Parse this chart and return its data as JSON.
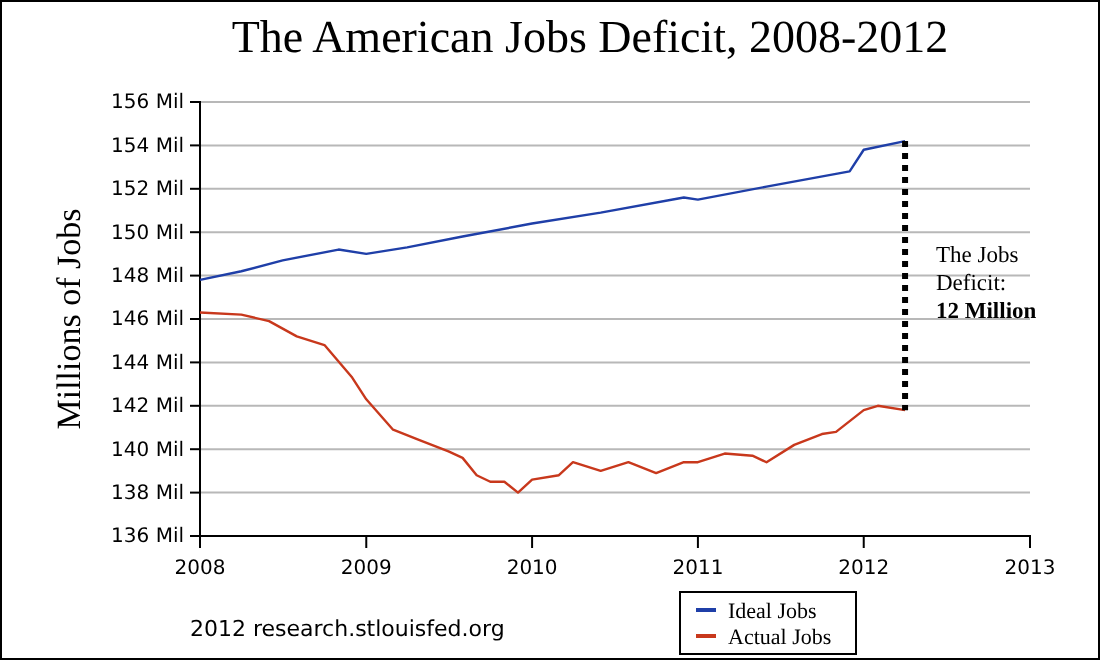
{
  "chart_data": {
    "type": "line",
    "title": "The American Jobs Deficit, 2008-2012",
    "ylabel": "Millions of Jobs",
    "xlim": [
      "2008",
      "2013"
    ],
    "xticks": [
      {
        "value": "2008",
        "label": "2008"
      },
      {
        "value": "2009",
        "label": "2009"
      },
      {
        "value": "2010",
        "label": "2010"
      },
      {
        "value": "2011",
        "label": "2011"
      },
      {
        "value": "2012",
        "label": "2012"
      },
      {
        "value": "2013",
        "label": "2013"
      }
    ],
    "ylim": [
      136,
      156
    ],
    "yticks": [
      {
        "value": 136,
        "label": "136 Mil"
      },
      {
        "value": 138,
        "label": "138 Mil"
      },
      {
        "value": 140,
        "label": "140 Mil"
      },
      {
        "value": 142,
        "label": "142 Mil"
      },
      {
        "value": 144,
        "label": "144 Mil"
      },
      {
        "value": 146,
        "label": "146 Mil"
      },
      {
        "value": 148,
        "label": "148 Mil"
      },
      {
        "value": 150,
        "label": "150 Mil"
      },
      {
        "value": 152,
        "label": "152 Mil"
      },
      {
        "value": 154,
        "label": "154 Mil"
      },
      {
        "value": 156,
        "label": "156 Mil"
      }
    ],
    "grid": "y",
    "legend": "bottom",
    "line_style": "solid",
    "marker": "none",
    "series": [
      {
        "name": "Ideal Jobs",
        "color": "#1f3fa8",
        "x": [
          "2008-01",
          "2008-04",
          "2008-07",
          "2008-11",
          "2009-01",
          "2009-04",
          "2009-08",
          "2010-01",
          "2010-06",
          "2010-12",
          "2011-01",
          "2011-06",
          "2011-12",
          "2012-01",
          "2012-04"
        ],
        "values": [
          147.8,
          148.2,
          148.7,
          149.2,
          149.0,
          149.3,
          149.8,
          150.4,
          150.9,
          151.6,
          151.5,
          152.1,
          152.8,
          153.8,
          154.2
        ]
      },
      {
        "name": "Actual Jobs",
        "color": "#c8381c",
        "x": [
          "2008-01",
          "2008-04",
          "2008-06",
          "2008-08",
          "2008-10",
          "2008-12",
          "2009-01",
          "2009-03",
          "2009-05",
          "2009-07",
          "2009-08",
          "2009-09",
          "2009-10",
          "2009-11",
          "2009-12",
          "2010-01",
          "2010-03",
          "2010-04",
          "2010-06",
          "2010-08",
          "2010-10",
          "2010-12",
          "2011-01",
          "2011-03",
          "2011-05",
          "2011-06",
          "2011-08",
          "2011-10",
          "2011-11",
          "2012-01",
          "2012-02",
          "2012-04"
        ],
        "values": [
          146.3,
          146.2,
          145.9,
          145.2,
          144.8,
          143.3,
          142.3,
          140.9,
          140.4,
          139.9,
          139.6,
          138.8,
          138.5,
          138.5,
          138.0,
          138.6,
          138.8,
          139.4,
          139.0,
          139.4,
          138.9,
          139.4,
          139.4,
          139.8,
          139.7,
          139.4,
          140.2,
          140.7,
          140.8,
          141.8,
          142.0,
          141.8
        ]
      },
      {
        "type": "line",
        "color": "#000000",
        "line_style": "dotted",
        "x": [
          "2012-04",
          "2012-04"
        ],
        "values": [
          154.2,
          141.8
        ]
      }
    ],
    "annotations": [
      "The Jobs Deficit:",
      "12 Million",
      "2012 research.stlouisfed.org"
    ]
  }
}
